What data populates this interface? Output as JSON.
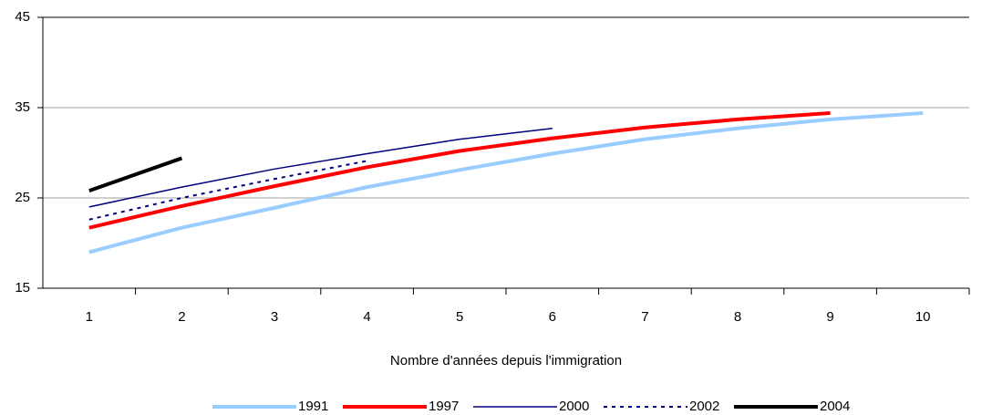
{
  "chart_data": {
    "type": "line",
    "xlabel": "Nombre d'années depuis l'immigration",
    "categories": [
      "1",
      "2",
      "3",
      "4",
      "5",
      "6",
      "7",
      "8",
      "9",
      "10"
    ],
    "series": [
      {
        "name": "1991",
        "color": "#99ccff",
        "width": 4,
        "dash": false,
        "values": [
          19.0,
          21.7,
          23.9,
          26.2,
          28.1,
          29.9,
          31.5,
          32.7,
          33.7,
          34.4
        ]
      },
      {
        "name": "1997",
        "color": "#ff0000",
        "width": 4,
        "dash": false,
        "values": [
          21.7,
          24.1,
          26.3,
          28.4,
          30.2,
          31.6,
          32.8,
          33.7,
          34.4,
          null
        ]
      },
      {
        "name": "2000",
        "color": "#000080",
        "width": 1.5,
        "dash": false,
        "values": [
          24.0,
          26.2,
          28.2,
          29.9,
          31.5,
          32.7,
          null,
          null,
          null,
          null
        ]
      },
      {
        "name": "2002",
        "color": "#000080",
        "width": 2,
        "dash": true,
        "values": [
          22.6,
          25.0,
          27.1,
          29.1,
          null,
          null,
          null,
          null,
          null,
          null
        ]
      },
      {
        "name": "2004",
        "color": "#000000",
        "width": 4,
        "dash": false,
        "values": [
          25.8,
          29.4,
          null,
          null,
          null,
          null,
          null,
          null,
          null,
          null
        ]
      }
    ],
    "ylim": [
      15,
      45
    ],
    "yticks": [
      15,
      25,
      35,
      45
    ],
    "grid": true
  }
}
